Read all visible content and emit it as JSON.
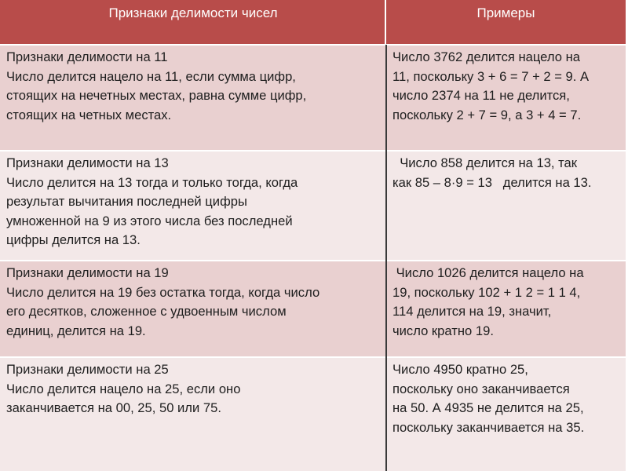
{
  "table": {
    "header": [
      "Признаки делимости  чисел",
      "Примеры"
    ],
    "rows": [
      [
        [
          "Признаки делимости на 11",
          "Число делится нацело на 11, если сумма цифр,",
          "стоящих на нечетных местах, равна сумме цифр,",
          "стоящих на четных местах."
        ],
        [
          "Число 3762 делится нацело на",
          "11, поскольку 3 + 6 = 7 + 2 = 9. А",
          "число 2374 на 11 не делится,",
          "поскольку 2 + 7 = 9, а 3 + 4 = 7."
        ]
      ],
      [
        [
          "Признаки делимости на 13",
          "Число делится на 13 тогда и только тогда, когда",
          "результат вычитания последней цифры",
          "умноженной на 9 из этого числа без последней",
          "цифры делится на 13."
        ],
        [
          "  Число 858 делится на 13, так",
          "как 85 – 8·9 = 13   делится на 13."
        ]
      ],
      [
        [
          "Признаки делимости на 19",
          "Число делится на 19 без остатка тогда, когда число",
          "его десятков, сложенное с удвоенным числом",
          "единиц, делится на 19."
        ],
        [
          " Число 1026 делится нацело на",
          "19, поскольку 102 + 1 2 = 1 1 4,",
          "114 делится на 19, значит,",
          "число кратно 19."
        ]
      ],
      [
        [
          "Признаки делимости на 25",
          "Число делится нацело на 25, если оно",
          "заканчивается на 00, 25, 50 или 75."
        ],
        [
          "Число 4950 кратно 25,",
          "поскольку оно заканчивается",
          "на 50. А 4935 не делится на 25,",
          "поскольку заканчивается на 35."
        ]
      ]
    ]
  }
}
